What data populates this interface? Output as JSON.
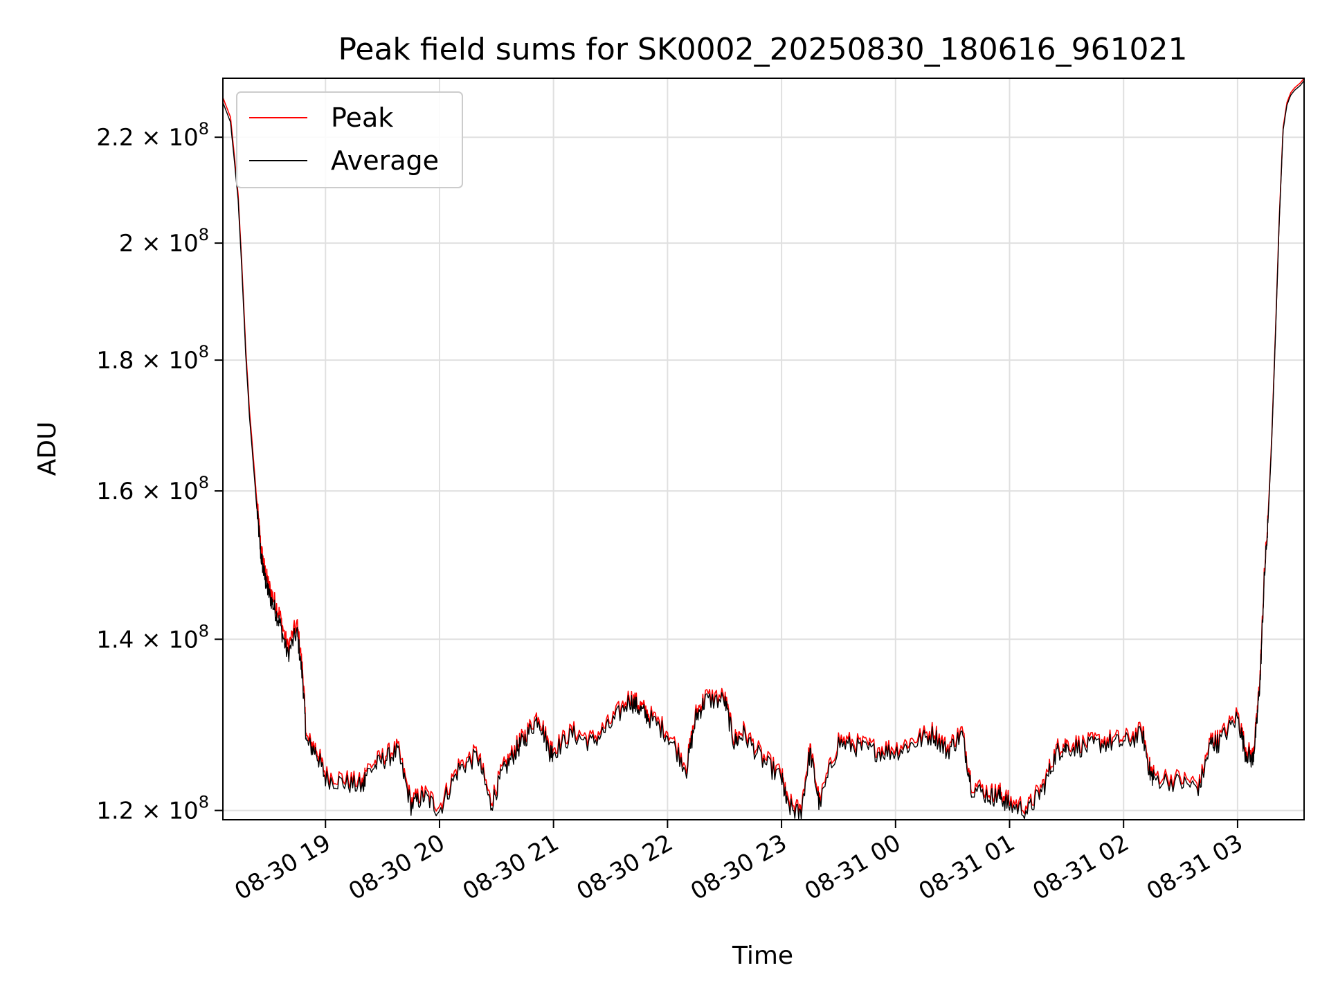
{
  "chart_data": {
    "type": "line",
    "title": "Peak field sums for SK0002_20250830_180616_961021",
    "xlabel": "Time",
    "ylabel": "ADU",
    "y_scale": "log",
    "xlim": [
      "2025-08-30 18:06",
      "2025-08-31 03:35"
    ],
    "ylim": [
      119000000,
      232000000
    ],
    "x_ticks": [
      {
        "t": "2025-08-30 19:00",
        "label": "08-30 19"
      },
      {
        "t": "2025-08-30 20:00",
        "label": "08-30 20"
      },
      {
        "t": "2025-08-30 21:00",
        "label": "08-30 21"
      },
      {
        "t": "2025-08-30 22:00",
        "label": "08-30 22"
      },
      {
        "t": "2025-08-30 23:00",
        "label": "08-30 23"
      },
      {
        "t": "2025-08-31 00:00",
        "label": "08-31 00"
      },
      {
        "t": "2025-08-31 01:00",
        "label": "08-31 01"
      },
      {
        "t": "2025-08-31 02:00",
        "label": "08-31 02"
      },
      {
        "t": "2025-08-31 03:00",
        "label": "08-31 03"
      }
    ],
    "y_ticks": [
      {
        "v": 120000000,
        "mant": "1.2",
        "exp": "8"
      },
      {
        "v": 140000000,
        "mant": "1.4",
        "exp": "8"
      },
      {
        "v": 160000000,
        "mant": "1.6",
        "exp": "8"
      },
      {
        "v": 180000000,
        "mant": "1.8",
        "exp": "8"
      },
      {
        "v": 200000000,
        "mant": "2",
        "exp": "8"
      },
      {
        "v": 220000000,
        "mant": "2.2",
        "exp": "8"
      }
    ],
    "grid": true,
    "legend_position": "top-left",
    "x": [
      "2025-08-30 18:06",
      "2025-08-30 18:10",
      "2025-08-30 18:14",
      "2025-08-30 18:16",
      "2025-08-30 18:18",
      "2025-08-30 18:20",
      "2025-08-30 18:22",
      "2025-08-30 18:24",
      "2025-08-30 18:26",
      "2025-08-30 18:28",
      "2025-08-30 18:30",
      "2025-08-30 18:33",
      "2025-08-30 18:36",
      "2025-08-30 18:40",
      "2025-08-30 18:45",
      "2025-08-30 18:48",
      "2025-08-30 18:50",
      "2025-08-30 18:55",
      "2025-08-30 19:00",
      "2025-08-30 19:10",
      "2025-08-30 19:20",
      "2025-08-30 19:21",
      "2025-08-30 19:30",
      "2025-08-30 19:38",
      "2025-08-30 19:45",
      "2025-08-30 19:52",
      "2025-08-30 20:00",
      "2025-08-30 20:10",
      "2025-08-30 20:20",
      "2025-08-30 20:27",
      "2025-08-30 20:33",
      "2025-08-30 20:40",
      "2025-08-30 20:45",
      "2025-08-30 20:52",
      "2025-08-30 20:58",
      "2025-08-30 21:00",
      "2025-08-30 21:10",
      "2025-08-30 21:20",
      "2025-08-30 21:30",
      "2025-08-30 21:40",
      "2025-08-30 21:45",
      "2025-08-30 21:50",
      "2025-08-30 22:00",
      "2025-08-30 22:10",
      "2025-08-30 22:15",
      "2025-08-30 22:20",
      "2025-08-30 22:30",
      "2025-08-30 22:35",
      "2025-08-30 22:40",
      "2025-08-30 22:50",
      "2025-08-30 23:00",
      "2025-08-30 23:03",
      "2025-08-30 23:10",
      "2025-08-30 23:15",
      "2025-08-30 23:20",
      "2025-08-30 23:30",
      "2025-08-30 23:40",
      "2025-08-30 23:50",
      "2025-08-31 00:00",
      "2025-08-31 00:10",
      "2025-08-31 00:20",
      "2025-08-31 00:27",
      "2025-08-31 00:35",
      "2025-08-31 00:40",
      "2025-08-31 00:50",
      "2025-08-31 00:55",
      "2025-08-31 01:00",
      "2025-08-31 01:10",
      "2025-08-31 01:18",
      "2025-08-31 01:25",
      "2025-08-31 01:30",
      "2025-08-31 01:40",
      "2025-08-31 01:50",
      "2025-08-31 02:00",
      "2025-08-31 02:10",
      "2025-08-31 02:14",
      "2025-08-31 02:16",
      "2025-08-31 02:30",
      "2025-08-31 02:40",
      "2025-08-31 02:46",
      "2025-08-31 02:50",
      "2025-08-31 03:00",
      "2025-08-31 03:04",
      "2025-08-31 03:08",
      "2025-08-31 03:10",
      "2025-08-31 03:12",
      "2025-08-31 03:14",
      "2025-08-31 03:16",
      "2025-08-31 03:18",
      "2025-08-31 03:20",
      "2025-08-31 03:22",
      "2025-08-31 03:24",
      "2025-08-31 03:26",
      "2025-08-31 03:28",
      "2025-08-31 03:30",
      "2025-08-31 03:33",
      "2025-08-31 03:35"
    ],
    "series": [
      {
        "name": "Peak",
        "color": "#ff0000",
        "values": [
          228,
          224,
          209,
          196,
          182,
          172,
          165,
          158,
          152,
          149,
          147,
          145,
          143,
          139,
          142,
          136,
          128,
          127,
          124,
          123.5,
          123,
          124.5,
          126,
          127,
          121,
          122,
          120.5,
          125,
          126.5,
          121,
          124.5,
          127,
          128.5,
          131,
          127,
          127,
          129,
          128,
          130,
          133,
          132,
          131,
          129,
          125,
          131,
          133,
          133,
          128,
          129,
          126,
          124,
          121,
          120,
          127,
          121,
          128,
          127.5,
          127,
          127,
          128,
          129,
          127,
          129,
          123,
          122,
          122,
          121,
          120.5,
          123,
          127,
          127.5,
          127.5,
          128,
          128,
          129,
          124.5,
          124,
          123.5,
          123,
          128,
          128,
          131,
          127,
          126,
          130,
          136,
          148,
          156,
          168,
          185,
          205,
          222,
          227,
          229,
          230,
          231,
          232
        ]
      },
      {
        "name": "Average",
        "color": "#000000",
        "values": [
          227,
          223,
          208,
          195,
          181,
          171,
          164,
          157,
          151,
          148,
          146,
          144,
          142,
          138,
          141,
          135,
          127.5,
          126.5,
          123.5,
          123,
          122.5,
          124,
          125.5,
          126.5,
          120.5,
          121.5,
          120,
          124.5,
          126,
          120.5,
          124,
          126.5,
          128,
          130.5,
          126.5,
          126.5,
          128.5,
          127.5,
          129.5,
          132.5,
          131.5,
          130.5,
          128.5,
          124.5,
          130.5,
          132.5,
          132.5,
          127.5,
          128.5,
          125.5,
          123.5,
          120.5,
          119.5,
          126.5,
          120.5,
          127.5,
          127,
          126.5,
          126.5,
          127.5,
          128.5,
          126.5,
          128.5,
          122.5,
          121.5,
          121.5,
          120.5,
          120,
          122.5,
          126.5,
          127,
          127,
          127.5,
          127.5,
          128.5,
          124,
          123.5,
          123,
          122.5,
          127.5,
          127.5,
          130.5,
          126.5,
          125.5,
          129.5,
          135.5,
          147.5,
          155.5,
          167.5,
          184.5,
          204.5,
          221.5,
          226.5,
          228.5,
          229.5,
          230.5,
          231.5
        ]
      }
    ],
    "series_units": "values in millions of ADU (×10^6)"
  }
}
